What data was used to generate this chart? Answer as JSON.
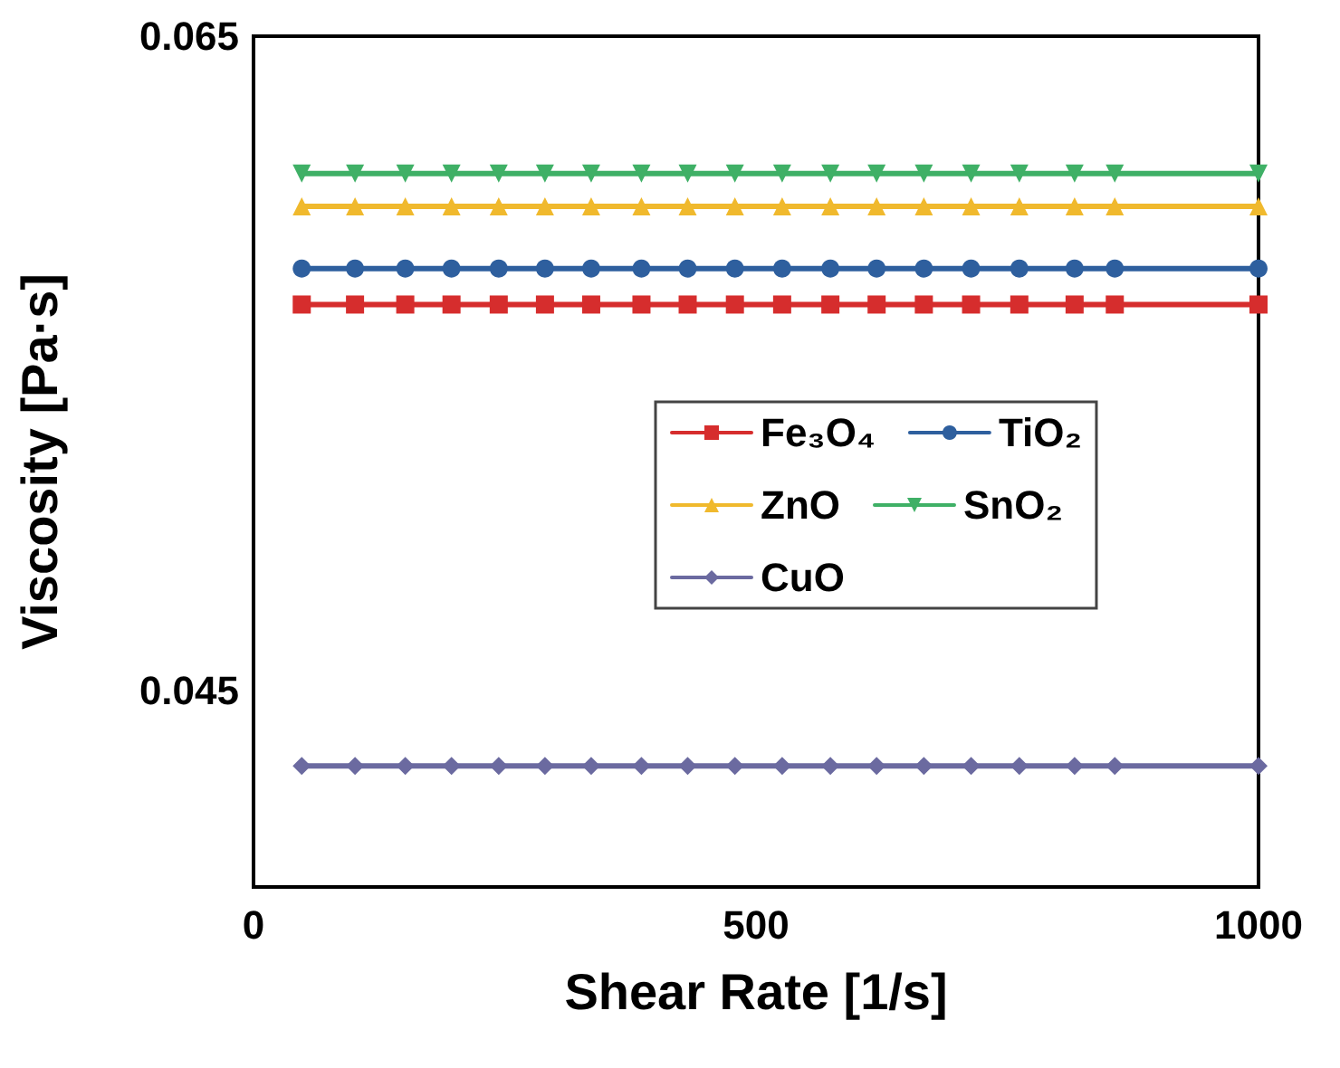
{
  "chart_data": {
    "type": "line",
    "xlabel": "Shear Rate [1/s]",
    "ylabel": "Viscosity [Pa·s]",
    "xlim": [
      0,
      1000
    ],
    "xticks": [
      0,
      500,
      1000
    ],
    "ylim": [
      0.039,
      0.065
    ],
    "yticks": [
      0.045,
      0.065
    ],
    "grid": false,
    "legend": "right",
    "line_style": "solid",
    "x": [
      48,
      101,
      151,
      197,
      244,
      290,
      336,
      386,
      432,
      479,
      526,
      574,
      620,
      667,
      714,
      762,
      817,
      857,
      1000
    ],
    "series": [
      {
        "name": "Fe₃O₄",
        "color": "#d62d2d",
        "marker": "square",
        "values": [
          0.0568,
          0.0568,
          0.0568,
          0.0568,
          0.0568,
          0.0568,
          0.0568,
          0.0568,
          0.0568,
          0.0568,
          0.0568,
          0.0568,
          0.0568,
          0.0568,
          0.0568,
          0.0568,
          0.0568,
          0.0568,
          0.0568
        ]
      },
      {
        "name": "TiO₂",
        "color": "#2e5f9e",
        "marker": "circle",
        "values": [
          0.0579,
          0.0579,
          0.0579,
          0.0579,
          0.0579,
          0.0579,
          0.0579,
          0.0579,
          0.0579,
          0.0579,
          0.0579,
          0.0579,
          0.0579,
          0.0579,
          0.0579,
          0.0579,
          0.0579,
          0.0579,
          0.0579
        ]
      },
      {
        "name": "ZnO",
        "color": "#f0b92d",
        "marker": "triangle",
        "values": [
          0.0598,
          0.0598,
          0.0598,
          0.0598,
          0.0598,
          0.0598,
          0.0598,
          0.0598,
          0.0598,
          0.0598,
          0.0598,
          0.0598,
          0.0598,
          0.0598,
          0.0598,
          0.0598,
          0.0598,
          0.0598,
          0.0598
        ]
      },
      {
        "name": "SnO₂",
        "color": "#3fb066",
        "marker": "triangle-down",
        "values": [
          0.0608,
          0.0608,
          0.0608,
          0.0608,
          0.0608,
          0.0608,
          0.0608,
          0.0608,
          0.0608,
          0.0608,
          0.0608,
          0.0608,
          0.0608,
          0.0608,
          0.0608,
          0.0608,
          0.0608,
          0.0608,
          0.0608
        ]
      },
      {
        "name": "CuO",
        "color": "#6b6aa0",
        "marker": "diamond",
        "values": [
          0.0427,
          0.0427,
          0.0427,
          0.0427,
          0.0427,
          0.0427,
          0.0427,
          0.0427,
          0.0427,
          0.0427,
          0.0427,
          0.0427,
          0.0427,
          0.0427,
          0.0427,
          0.0427,
          0.0427,
          0.0427,
          0.0427
        ]
      }
    ]
  }
}
